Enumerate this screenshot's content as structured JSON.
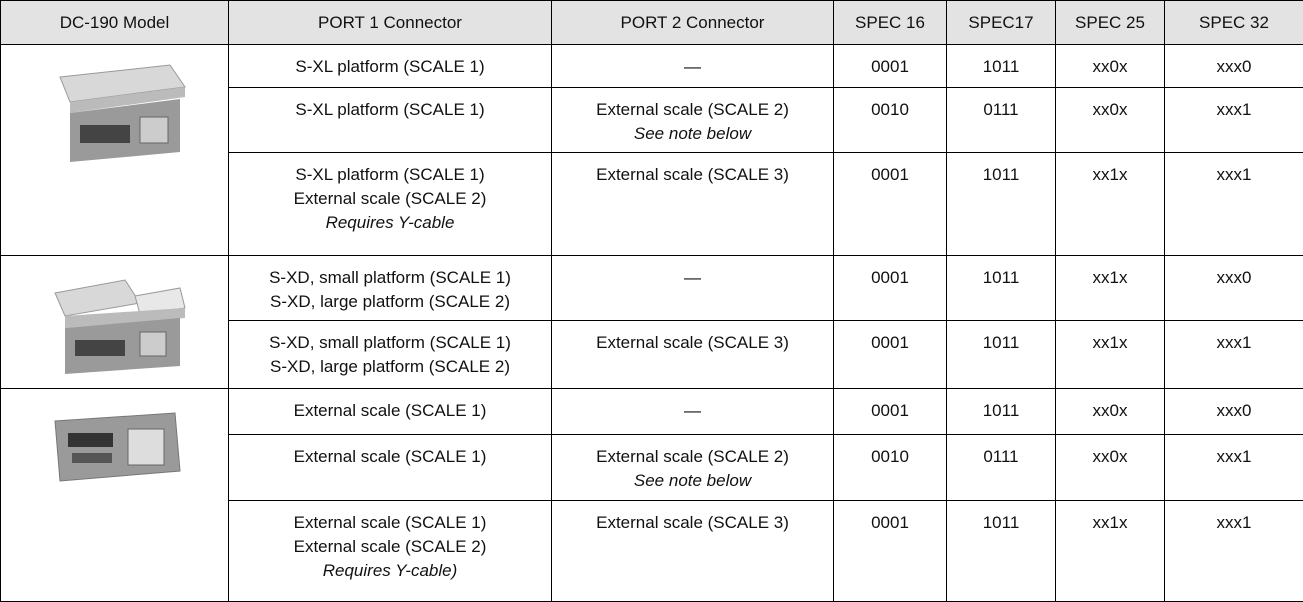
{
  "table": {
    "header": [
      "DC-190 Model",
      "PORT 1 Connector",
      "PORT 2 Connector",
      "SPEC 16",
      "SPEC17",
      "SPEC 25",
      "SPEC 32"
    ],
    "rows": [
      {
        "port1": [
          "S-XL platform (SCALE 1)"
        ],
        "port2": [
          "—"
        ],
        "spec16": "0001",
        "spec17": "1011",
        "spec25": "xx0x",
        "spec32": "xxx0"
      },
      {
        "port1": [
          "S-XL platform (SCALE 1)"
        ],
        "port2": [
          "External scale (SCALE 2)",
          "See note below"
        ],
        "spec16": "0010",
        "spec17": "0111",
        "spec25": "xx0x",
        "spec32": "xxx1"
      },
      {
        "port1": [
          "S-XL platform (SCALE 1)",
          "External scale (SCALE 2)",
          "Requires Y-cable"
        ],
        "port2": [
          "External scale (SCALE 3)"
        ],
        "spec16": "0001",
        "spec17": "1011",
        "spec25": "xx1x",
        "spec32": "xxx1"
      },
      {
        "port1": [
          "S-XD, small platform (SCALE 1)",
          "S-XD, large platform (SCALE 2)"
        ],
        "port2": [
          "—"
        ],
        "spec16": "0001",
        "spec17": "1011",
        "spec25": "xx1x",
        "spec32": "xxx0"
      },
      {
        "port1": [
          "S-XD, small platform (SCALE 1)",
          "S-XD, large platform (SCALE 2)"
        ],
        "port2": [
          "External scale (SCALE 3)"
        ],
        "spec16": "0001",
        "spec17": "1011",
        "spec25": "xx1x",
        "spec32": "xxx1"
      },
      {
        "port1": [
          "External scale (SCALE 1)"
        ],
        "port2": [
          "—"
        ],
        "spec16": "0001",
        "spec17": "1011",
        "spec25": "xx0x",
        "spec32": "xxx0"
      },
      {
        "port1": [
          "External scale (SCALE 1)"
        ],
        "port2": [
          "External scale (SCALE 2)",
          "See note below"
        ],
        "spec16": "0010",
        "spec17": "0111",
        "spec25": "xx0x",
        "spec32": "xxx1"
      },
      {
        "port1": [
          "External scale (SCALE 1)",
          "External scale (SCALE 2)",
          "Requires Y-cable)"
        ],
        "port2": [
          "External scale (SCALE 3)"
        ],
        "spec16": "0001",
        "spec17": "1011",
        "spec25": "xx1x",
        "spec32": "xxx1"
      }
    ]
  }
}
